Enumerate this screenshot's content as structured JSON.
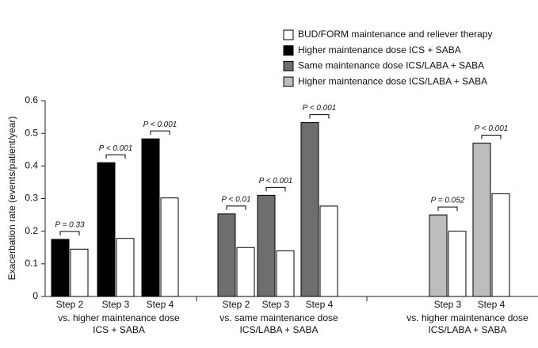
{
  "chart_data": {
    "type": "bar",
    "y_label": "Exacerbation rate (events/patient/year)",
    "ylim": [
      0,
      0.6
    ],
    "yticks": [
      0,
      0.1,
      0.2,
      0.3,
      0.4,
      0.5,
      0.6
    ],
    "groups": [
      {
        "label_lines": [
          "vs. higher maintenance dose",
          "ICS + SABA"
        ],
        "categories": [
          "Step 2",
          "Step 3",
          "Step 4"
        ]
      },
      {
        "label_lines": [
          "vs. same maintenance dose",
          "ICS/LABA + SABA"
        ],
        "categories": [
          "Step 2",
          "Step 3",
          "Step 4"
        ]
      },
      {
        "label_lines": [
          "vs. higher maintenance dose",
          "ICS/LABA + SABA"
        ],
        "categories": [
          "Step 3",
          "Step 4"
        ]
      }
    ],
    "p_labels": [
      "P = 0.33",
      "P < 0.001",
      "P < 0.001",
      "P < 0.01",
      "P < 0.001",
      "P < 0.001",
      "P = 0.052",
      "P < 0.001"
    ],
    "series": [
      {
        "name": "BUD/FORM maintenance and reliever therapy",
        "color": "#ffffff",
        "values": [
          0.145,
          0.178,
          0.302,
          0.15,
          0.14,
          0.277,
          0.2,
          0.315
        ]
      },
      {
        "name": "Higher maintenance dose ICS + SABA",
        "color": "#000000",
        "values": [
          0.175,
          0.41,
          0.483,
          null,
          null,
          null,
          null,
          null
        ]
      },
      {
        "name": "Same maintenance dose ICS/LABA + SABA",
        "color": "#6e6e6e",
        "values": [
          null,
          null,
          null,
          0.253,
          0.31,
          0.533,
          null,
          null
        ]
      },
      {
        "name": "Higher maintenance dose ICS/LABA + SABA",
        "color": "#bdbdbd",
        "values": [
          null,
          null,
          null,
          null,
          null,
          null,
          0.25,
          0.47
        ]
      }
    ]
  }
}
